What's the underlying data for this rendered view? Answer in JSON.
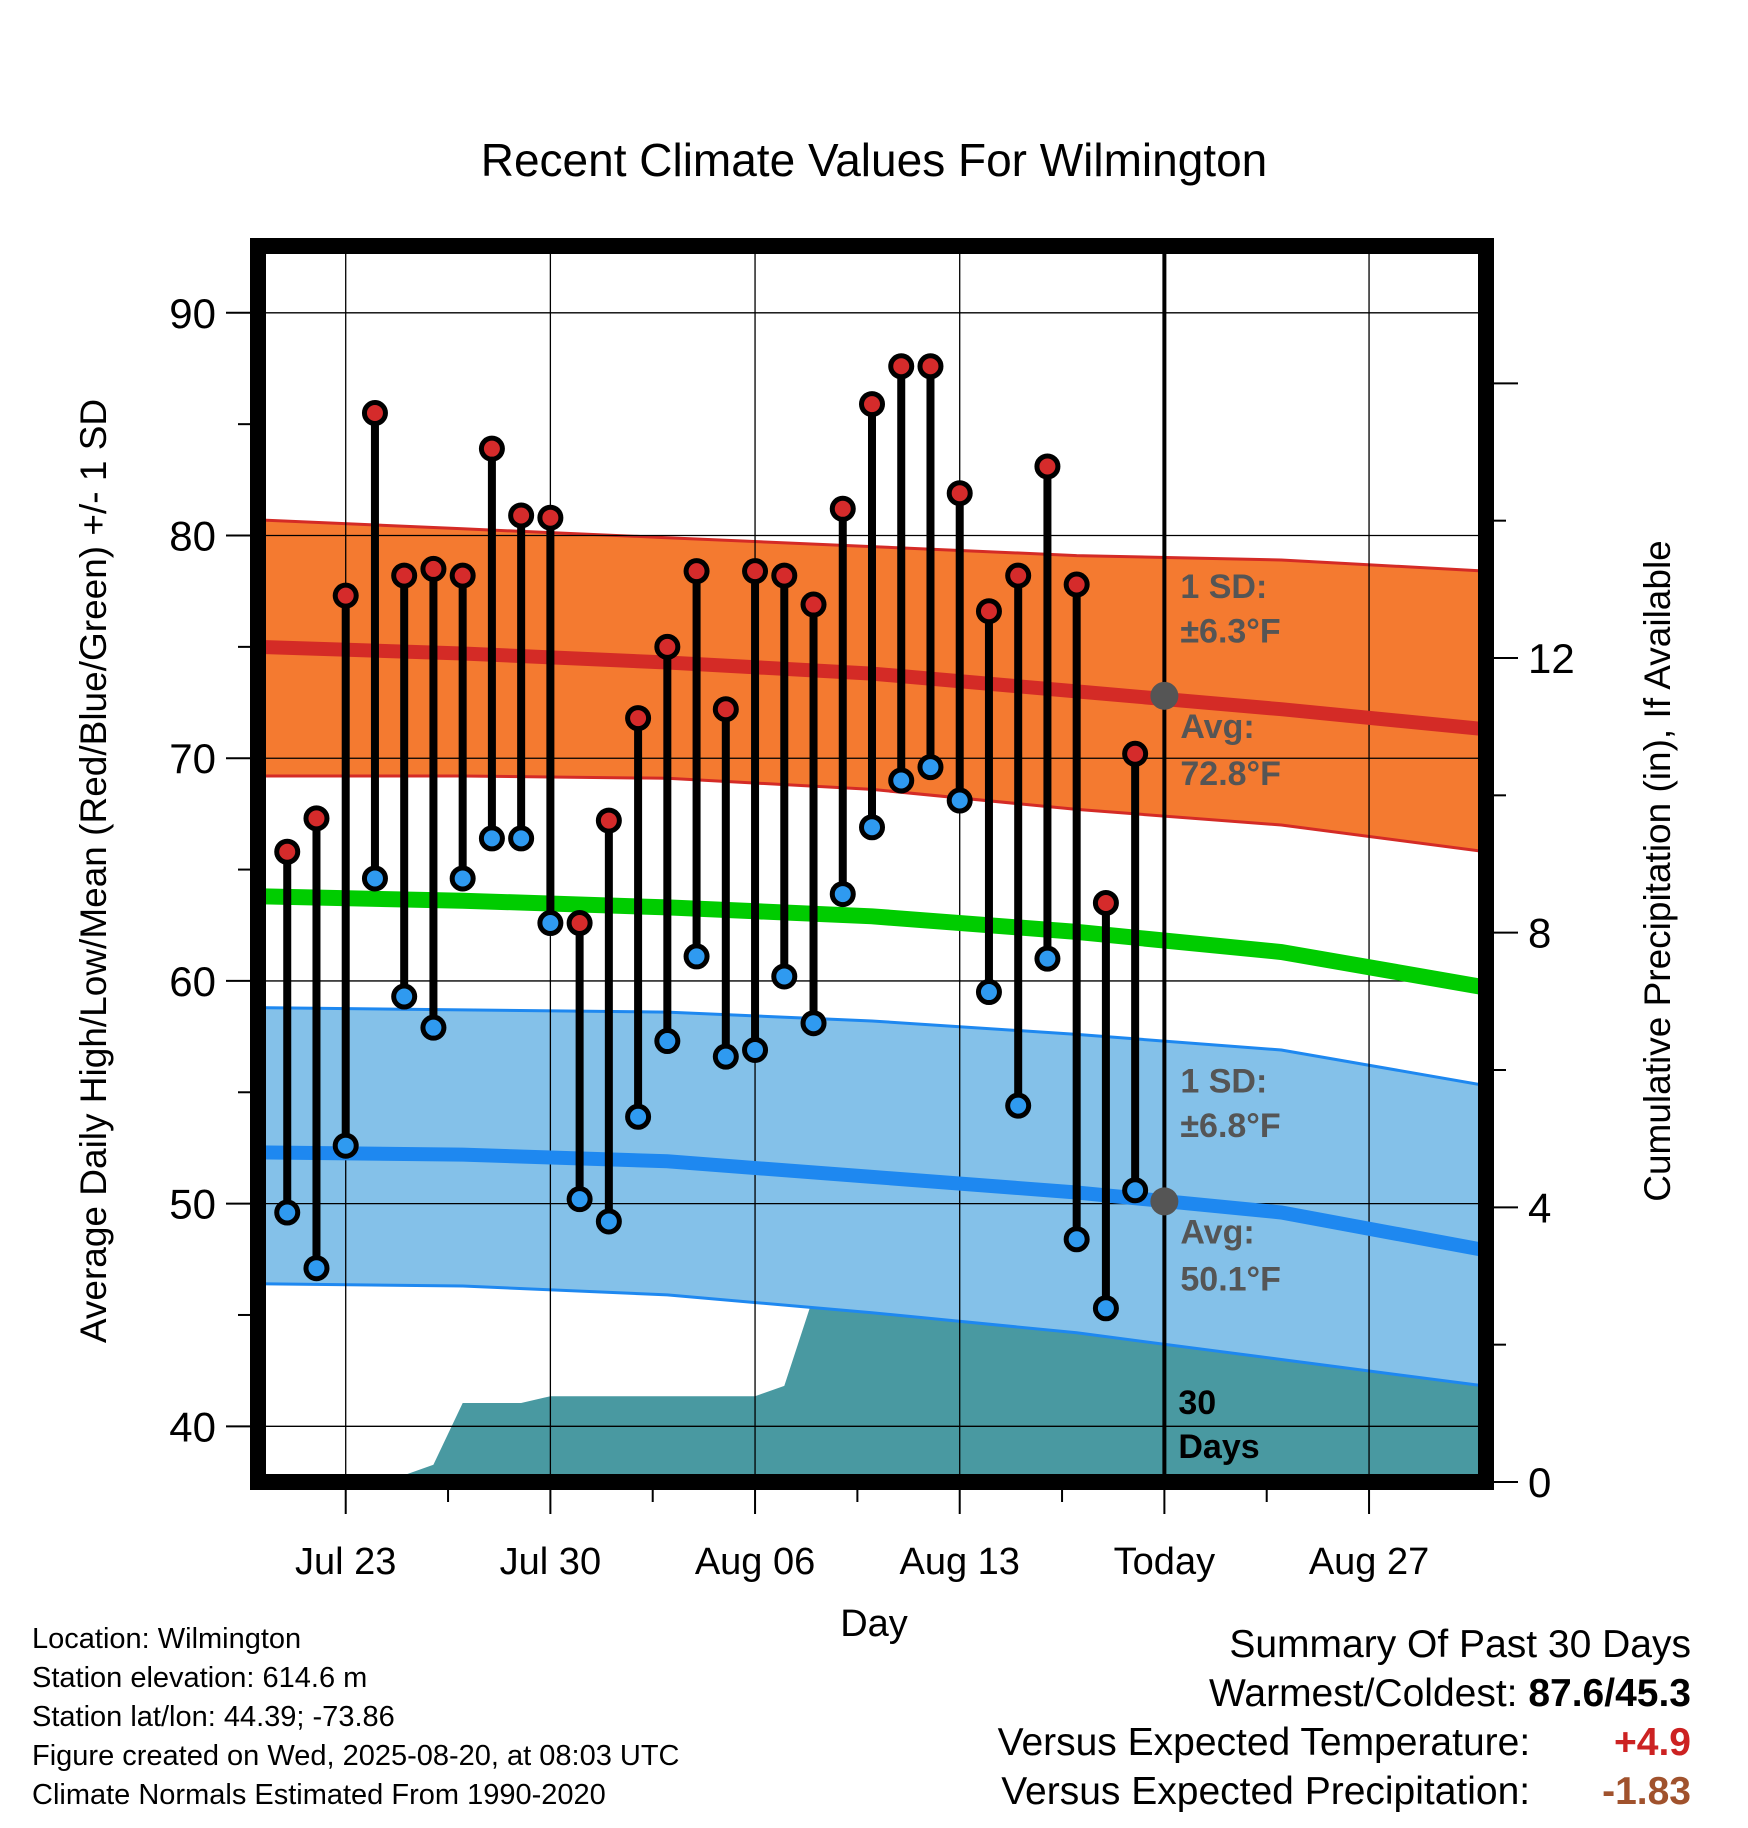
{
  "chart_data": {
    "type": "line",
    "title": "Recent Climate Values For Wilmington",
    "xlabel": "Day",
    "ylabel": "Average Daily High/Low/Mean (Red/Blue/Green) +/- 1 SD",
    "y2label": "Cumulative Precipitation (in), If Available",
    "ylim": [
      37.5,
      93
    ],
    "y2lim": [
      0,
      18
    ],
    "yticks": [
      40,
      50,
      60,
      70,
      80,
      90
    ],
    "y2ticks": [
      0,
      4,
      8,
      12
    ],
    "xlim": [
      "2025-07-20",
      "2025-08-31"
    ],
    "xticks": [
      {
        "date": "2025-07-23",
        "label": "Jul 23"
      },
      {
        "date": "2025-07-30",
        "label": "Jul 30"
      },
      {
        "date": "2025-08-06",
        "label": "Aug 06"
      },
      {
        "date": "2025-08-13",
        "label": "Aug 13"
      },
      {
        "date": "2025-08-20",
        "label": "Today"
      },
      {
        "date": "2025-08-27",
        "label": "Aug 27"
      }
    ],
    "today": "2025-08-20",
    "days_label": [
      "30",
      "Days"
    ],
    "grid": true,
    "daily": {
      "dates": [
        "2025-07-21",
        "2025-07-22",
        "2025-07-23",
        "2025-07-24",
        "2025-07-25",
        "2025-07-26",
        "2025-07-27",
        "2025-07-28",
        "2025-07-29",
        "2025-07-30",
        "2025-07-31",
        "2025-08-01",
        "2025-08-02",
        "2025-08-03",
        "2025-08-04",
        "2025-08-05",
        "2025-08-06",
        "2025-08-07",
        "2025-08-08",
        "2025-08-09",
        "2025-08-10",
        "2025-08-11",
        "2025-08-12",
        "2025-08-13",
        "2025-08-14",
        "2025-08-15",
        "2025-08-16",
        "2025-08-17",
        "2025-08-18",
        "2025-08-19"
      ],
      "high": [
        65.8,
        67.3,
        77.3,
        85.5,
        78.2,
        78.5,
        78.2,
        83.9,
        80.9,
        80.8,
        62.6,
        67.2,
        71.8,
        75.0,
        78.4,
        72.2,
        78.4,
        78.2,
        76.9,
        81.2,
        85.9,
        87.6,
        87.6,
        81.9,
        76.6,
        78.2,
        83.1,
        77.8,
        63.5,
        70.2
      ],
      "low": [
        49.6,
        47.1,
        52.6,
        64.6,
        59.3,
        57.9,
        64.6,
        66.4,
        66.4,
        62.6,
        50.2,
        49.2,
        53.9,
        57.3,
        61.1,
        56.6,
        56.9,
        60.2,
        58.1,
        63.9,
        66.9,
        69.0,
        69.6,
        68.1,
        59.5,
        54.4,
        61.0,
        48.4,
        45.3,
        50.6
      ]
    },
    "normals": {
      "dates": [
        "2025-07-20",
        "2025-07-27",
        "2025-08-03",
        "2025-08-10",
        "2025-08-17",
        "2025-08-24",
        "2025-08-31"
      ],
      "high_avg": [
        75.0,
        74.7,
        74.3,
        73.8,
        73.0,
        72.2,
        71.3
      ],
      "high_upper": [
        80.7,
        80.3,
        79.9,
        79.5,
        79.1,
        78.9,
        78.4
      ],
      "high_lower": [
        69.2,
        69.2,
        69.1,
        68.6,
        67.7,
        67.0,
        65.8
      ],
      "mean_avg": [
        63.8,
        63.6,
        63.3,
        62.9,
        62.2,
        61.3,
        59.7
      ],
      "low_avg": [
        52.3,
        52.2,
        51.9,
        51.2,
        50.5,
        49.6,
        47.9
      ],
      "low_upper": [
        58.8,
        58.7,
        58.6,
        58.2,
        57.6,
        56.9,
        55.3
      ],
      "low_lower": [
        46.4,
        46.3,
        45.9,
        45.1,
        44.2,
        43.0,
        41.8
      ]
    },
    "precip": {
      "dates": [
        "2025-07-20",
        "2025-07-23",
        "2025-07-25",
        "2025-07-26",
        "2025-07-27",
        "2025-07-28",
        "2025-07-29",
        "2025-07-30",
        "2025-07-31",
        "2025-08-01",
        "2025-08-02",
        "2025-08-03",
        "2025-08-04",
        "2025-08-05",
        "2025-08-06",
        "2025-08-07",
        "2025-08-08",
        "2025-08-09",
        "2025-08-10",
        "2025-08-15",
        "2025-08-16",
        "2025-08-17",
        "2025-08-18",
        "2025-08-19",
        "2025-08-24",
        "2025-08-31"
      ],
      "values": [
        0,
        0,
        0.1,
        0.25,
        1.15,
        1.15,
        1.15,
        1.25,
        1.25,
        1.25,
        1.25,
        1.25,
        1.25,
        1.25,
        1.25,
        1.4,
        2.7,
        2.7,
        2.7,
        2.7,
        2.72,
        2.8,
        2.8,
        2.82,
        2.82,
        2.82
      ]
    },
    "annotations": {
      "high_sd": [
        "1 SD:",
        "±6.3°F"
      ],
      "high_avg": [
        "Avg:",
        "72.8°F"
      ],
      "low_sd": [
        "1 SD:",
        "±6.8°F"
      ],
      "low_avg": [
        "Avg:",
        "50.1°F"
      ]
    },
    "today_high_avg": 72.8,
    "today_low_avg": 50.1,
    "colors": {
      "high_band": "#f47a30",
      "high_band_edge": "#d42b26",
      "high_line": "#d42b26",
      "mean_line": "#00cc00",
      "low_band": "#84c1e9",
      "low_band_edge": "#1e88f0",
      "low_line": "#1e88f0",
      "precip_fill": "#4999a1",
      "high_dot": "#d52b2b",
      "low_dot": "#2f9af0",
      "annotation_text": "#555555",
      "today_marker": "#555555"
    }
  },
  "info": {
    "location": "Location: Wilmington",
    "elevation": "Station elevation: 614.6 m",
    "latlon": "Station lat/lon: 44.39; -73.86",
    "created": "Figure created on Wed, 2025-08-20, at 08:03 UTC",
    "normals": "Climate Normals Estimated From 1990-2020"
  },
  "summary": {
    "title": "Summary Of Past 30 Days",
    "warmest_label": "Warmest/Coldest:",
    "warmest_value": "87.6/45.3",
    "temp_label": "Versus Expected Temperature:",
    "temp_value": "+4.9",
    "temp_color": "#cc2222",
    "precip_label": "Versus Expected Precipitation:",
    "precip_value": "-1.83",
    "precip_color": "#a0522d"
  }
}
